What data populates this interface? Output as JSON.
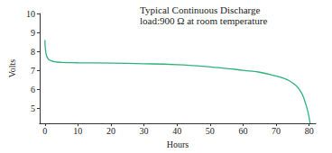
{
  "chart_data": {
    "type": "line",
    "title": "Typical Continuous Discharge",
    "subtitle": "load:900 Ω at room temperature",
    "x_label": "Hours",
    "y_label": "Volts",
    "x": [
      0,
      0.3,
      1,
      2,
      3,
      5,
      10,
      20,
      30,
      40,
      45,
      50,
      55,
      60,
      65,
      70,
      72,
      74,
      76,
      77,
      78,
      79,
      79.5,
      80,
      80.3
    ],
    "values": [
      8.6,
      7.9,
      7.6,
      7.5,
      7.45,
      7.42,
      7.4,
      7.38,
      7.35,
      7.3,
      7.25,
      7.18,
      7.1,
      7.0,
      6.9,
      6.7,
      6.6,
      6.45,
      6.2,
      6.0,
      5.7,
      5.2,
      4.9,
      4.5,
      4.2
    ],
    "color": "#2db37a",
    "marker": "none",
    "line_style": "solid",
    "xlim": [
      -1.6,
      82
    ],
    "xticks": [
      0,
      10,
      20,
      30,
      40,
      50,
      60,
      70,
      80
    ],
    "ylim": [
      4.2,
      10
    ],
    "yticks": [
      5,
      6,
      7,
      8,
      9,
      10
    ],
    "grid": false
  }
}
